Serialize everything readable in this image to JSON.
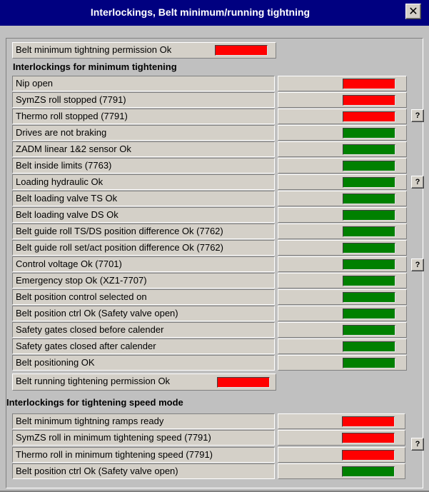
{
  "window": {
    "title": "Interlockings, Belt minimum/running tightning",
    "close_label": "✕"
  },
  "help_label": "?",
  "colors": {
    "red": "#ff0000",
    "green": "#008000"
  },
  "min_permission": {
    "label": "Belt minimum tightning permission Ok",
    "status": "red"
  },
  "min_section": {
    "heading": "Interlockings for minimum tightening",
    "rows": [
      {
        "label": "Nip open",
        "status": "red"
      },
      {
        "label": "SymZS roll stopped (7791)",
        "status": "red"
      },
      {
        "label": "Thermo roll stopped (7791)",
        "status": "red"
      },
      {
        "label": "Drives are not braking",
        "status": "green"
      },
      {
        "label": "ZADM linear 1&2 sensor Ok",
        "status": "green"
      },
      {
        "label": "Belt inside limits (7763)",
        "status": "green"
      },
      {
        "label": "Loading hydraulic Ok",
        "status": "green"
      },
      {
        "label": "Belt loading valve TS Ok",
        "status": "green"
      },
      {
        "label": "Belt loading valve DS Ok",
        "status": "green"
      },
      {
        "label": "Belt guide roll TS/DS position difference Ok (7762)",
        "status": "green"
      },
      {
        "label": "Belt guide roll set/act position difference Ok (7762)",
        "status": "green"
      },
      {
        "label": "Control voltage Ok (7701)",
        "status": "green"
      },
      {
        "label": "Emergency stop Ok (XZ1-7707)",
        "status": "green"
      },
      {
        "label": "Belt position control selected on",
        "status": "green"
      },
      {
        "label": "Belt position ctrl Ok (Safety valve open)",
        "status": "green"
      },
      {
        "label": "Safety gates closed before calender",
        "status": "green"
      },
      {
        "label": "Safety gates closed after calender",
        "status": "green"
      },
      {
        "label": "Belt positioning OK",
        "status": "green"
      }
    ]
  },
  "running_permission": {
    "label": "Belt running tightening permission Ok",
    "status": "red"
  },
  "speed_section": {
    "heading": "Interlockings for tightening speed mode",
    "rows": [
      {
        "label": "Belt minimum tightning ramps ready",
        "status": "red"
      },
      {
        "label": "SymZS roll in minimum tightening speed (7791)",
        "status": "red"
      },
      {
        "label": "Thermo roll in minimum tightening speed (7791)",
        "status": "red"
      },
      {
        "label": "Belt position ctrl Ok (Safety valve open)",
        "status": "green"
      }
    ]
  }
}
